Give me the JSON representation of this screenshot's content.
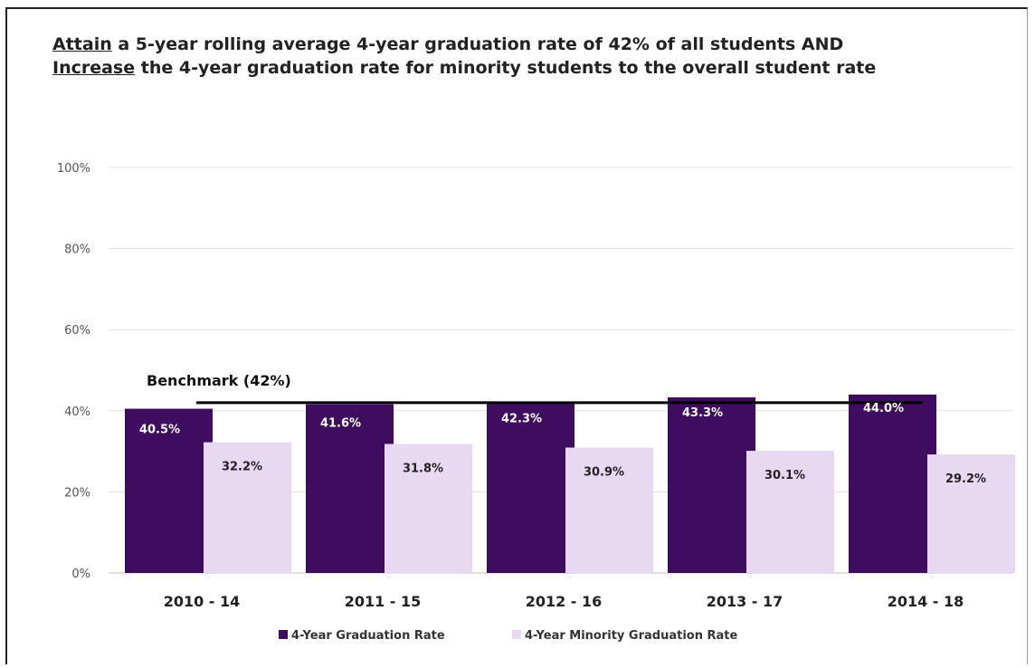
{
  "title": {
    "line1_underlined": "Attain",
    "line1_rest": " a 5-year rolling average 4-year graduation rate of 42% of all students AND",
    "line2_underlined": "Increase",
    "line2_rest": " the 4-year graduation rate for minority students to the overall student rate"
  },
  "chart_data": {
    "type": "bar",
    "categories": [
      "2010 - 14",
      "2011 - 15",
      "2012 - 16",
      "2013 - 17",
      "2014 - 18"
    ],
    "series": [
      {
        "name": "4-Year Graduation Rate",
        "values": [
          40.5,
          41.6,
          42.3,
          43.3,
          44.0
        ],
        "labels": [
          "40.5%",
          "41.6%",
          "42.3%",
          "43.3%",
          "44.0%"
        ],
        "color": "#3f0d60",
        "label_color": "#ffffff"
      },
      {
        "name": "4-Year Minority Graduation Rate",
        "values": [
          32.2,
          31.8,
          30.9,
          30.1,
          29.2
        ],
        "labels": [
          "32.2%",
          "31.8%",
          "30.9%",
          "30.1%",
          "29.2%"
        ],
        "color": "#e8d9f3",
        "label_color": "#222222"
      }
    ],
    "ylim": [
      0,
      100
    ],
    "yticks": [
      0,
      20,
      40,
      60,
      80,
      100
    ],
    "ytick_labels": [
      "0%",
      "20%",
      "40%",
      "60%",
      "80%",
      "100%"
    ],
    "benchmark": {
      "value": 42,
      "label": "Benchmark (42%)"
    },
    "grid": true,
    "legend": "bottom"
  }
}
